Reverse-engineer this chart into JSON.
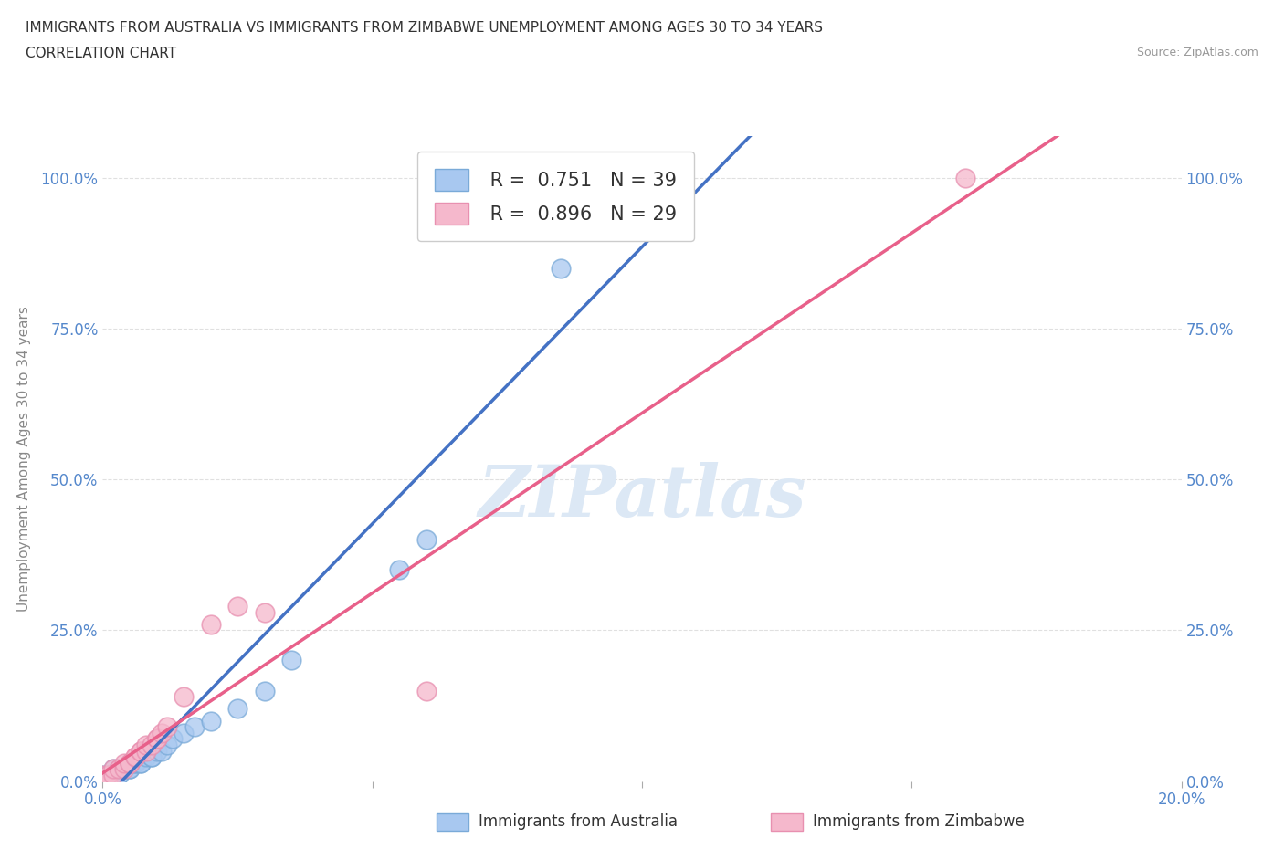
{
  "title_line1": "IMMIGRANTS FROM AUSTRALIA VS IMMIGRANTS FROM ZIMBABWE UNEMPLOYMENT AMONG AGES 30 TO 34 YEARS",
  "title_line2": "CORRELATION CHART",
  "source_text": "Source: ZipAtlas.com",
  "ylabel": "Unemployment Among Ages 30 to 34 years",
  "australia_R": 0.751,
  "australia_N": 39,
  "zimbabwe_R": 0.896,
  "zimbabwe_N": 29,
  "australia_color": "#A8C8F0",
  "zimbabwe_color": "#F5B8CC",
  "australia_edge_color": "#7AAAD8",
  "zimbabwe_edge_color": "#E890B0",
  "australia_line_color": "#4472C4",
  "zimbabwe_line_color": "#E8608A",
  "background_color": "#FFFFFF",
  "watermark_text": "ZIPatlas",
  "aus_x": [
    0.0,
    0.0,
    0.0,
    0.0,
    0.001,
    0.001,
    0.001,
    0.002,
    0.002,
    0.002,
    0.003,
    0.003,
    0.003,
    0.004,
    0.004,
    0.005,
    0.005,
    0.005,
    0.006,
    0.006,
    0.007,
    0.007,
    0.008,
    0.009,
    0.009,
    0.01,
    0.011,
    0.012,
    0.013,
    0.015,
    0.017,
    0.02,
    0.025,
    0.03,
    0.035,
    0.055,
    0.06,
    0.085,
    0.095
  ],
  "aus_y": [
    0.0,
    0.0,
    0.0,
    0.01,
    0.0,
    0.01,
    0.01,
    0.01,
    0.01,
    0.02,
    0.01,
    0.01,
    0.02,
    0.02,
    0.02,
    0.02,
    0.02,
    0.03,
    0.03,
    0.03,
    0.03,
    0.03,
    0.04,
    0.04,
    0.04,
    0.05,
    0.05,
    0.06,
    0.07,
    0.08,
    0.09,
    0.1,
    0.12,
    0.15,
    0.2,
    0.35,
    0.4,
    0.85,
    1.0
  ],
  "zim_x": [
    0.0,
    0.0,
    0.0,
    0.001,
    0.001,
    0.002,
    0.002,
    0.003,
    0.004,
    0.004,
    0.005,
    0.005,
    0.006,
    0.006,
    0.007,
    0.007,
    0.008,
    0.008,
    0.009,
    0.01,
    0.01,
    0.011,
    0.012,
    0.015,
    0.02,
    0.025,
    0.03,
    0.06,
    0.16
  ],
  "zim_y": [
    0.0,
    0.0,
    0.01,
    0.0,
    0.01,
    0.01,
    0.02,
    0.02,
    0.02,
    0.03,
    0.03,
    0.03,
    0.04,
    0.04,
    0.05,
    0.05,
    0.05,
    0.06,
    0.06,
    0.07,
    0.07,
    0.08,
    0.09,
    0.14,
    0.26,
    0.29,
    0.28,
    0.15,
    1.0
  ],
  "xlim": [
    0.0,
    0.2
  ],
  "ylim": [
    0.0,
    1.07
  ],
  "grid_color": "#DDDDDD",
  "title_fontsize": 11,
  "axis_label_color": "#5588CC",
  "ylabel_color": "#888888"
}
